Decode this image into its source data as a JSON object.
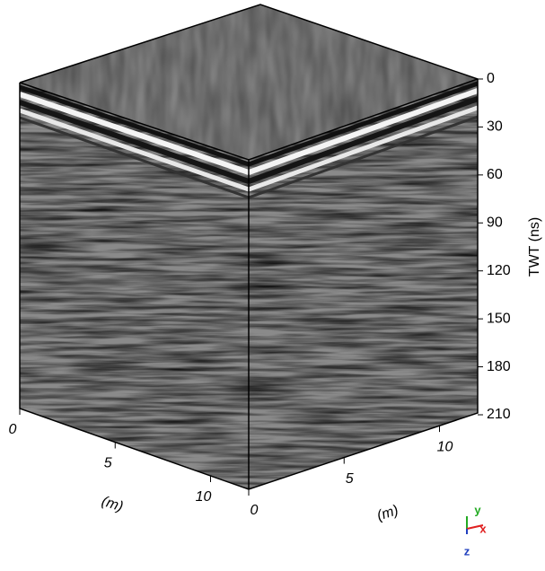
{
  "chart_data": {
    "type": "volume",
    "zlabel": "TWT (ns)",
    "zlim": [
      0,
      210
    ],
    "zticks": [
      0,
      30,
      60,
      90,
      120,
      150,
      180,
      210
    ],
    "xlabel": "(m)",
    "xlim": [
      0,
      12
    ],
    "xticks": [
      0,
      5,
      10
    ],
    "ylabel": "(m)",
    "ylim": [
      0,
      12
    ],
    "yticks": [
      0,
      5,
      10
    ],
    "triad": [
      {
        "label": "y",
        "color": "#22aa22"
      },
      {
        "label": "x",
        "color": "#e02020"
      },
      {
        "label": "z",
        "color": "#1f3fbf"
      }
    ]
  }
}
